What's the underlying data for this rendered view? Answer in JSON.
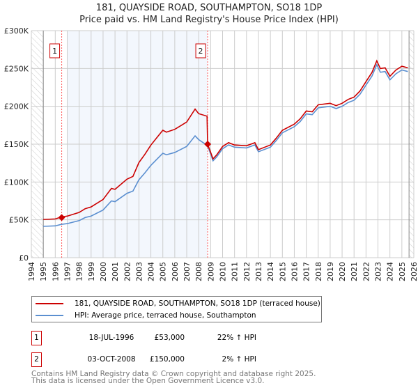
{
  "chart_data": {
    "type": "line",
    "title": "181, QUAYSIDE ROAD, SOUTHAMPTON, SO18 1DP",
    "subtitle": "Price paid vs. HM Land Registry's House Price Index (HPI)",
    "xlim": [
      1994,
      2026
    ],
    "ylim": [
      0,
      300000
    ],
    "x_ticks": [
      "1994",
      "1995",
      "1996",
      "1997",
      "1998",
      "1999",
      "2000",
      "2001",
      "2002",
      "2003",
      "2004",
      "2005",
      "2006",
      "2007",
      "2008",
      "2009",
      "2010",
      "2011",
      "2012",
      "2013",
      "2014",
      "2015",
      "2016",
      "2017",
      "2018",
      "2019",
      "2020",
      "2021",
      "2022",
      "2023",
      "2024",
      "2025",
      "2026"
    ],
    "y_ticks": [
      {
        "v": 0,
        "label": "£0"
      },
      {
        "v": 50000,
        "label": "£50K"
      },
      {
        "v": 100000,
        "label": "£100K"
      },
      {
        "v": 150000,
        "label": "£150K"
      },
      {
        "v": 200000,
        "label": "£200K"
      },
      {
        "v": 250000,
        "label": "£250K"
      },
      {
        "v": 300000,
        "label": "£300K"
      }
    ],
    "grid": true,
    "series": [
      {
        "name": "181, QUAYSIDE ROAD, SOUTHAMPTON, SO18 1DP (terraced house)",
        "color": "#cc0000",
        "x": [
          1995,
          1996,
          1996.5,
          1997,
          1998,
          1998.5,
          1999,
          2000,
          2000.7,
          2001,
          2002,
          2002.5,
          2003,
          2003.5,
          2004,
          2004.5,
          2005,
          2005.3,
          2006,
          2007,
          2007.7,
          2008,
          2008.7,
          2008.75,
          2009.2,
          2009.5,
          2010,
          2010.5,
          2011,
          2012,
          2012.7,
          2013,
          2014,
          2014.5,
          2015,
          2016,
          2016.5,
          2017,
          2017.5,
          2018,
          2019,
          2019.5,
          2020,
          2020.5,
          2021,
          2021.5,
          2022,
          2022.5,
          2022.9,
          2023.2,
          2023.6,
          2024,
          2024.5,
          2025,
          2025.5
        ],
        "values": [
          50500,
          51200,
          53700,
          54900,
          59800,
          64700,
          67100,
          76900,
          91500,
          90300,
          103700,
          107400,
          125700,
          136600,
          148800,
          158600,
          168400,
          165900,
          169600,
          179300,
          196400,
          190300,
          187000,
          150000,
          130600,
          135700,
          146900,
          152000,
          148900,
          147900,
          152000,
          142800,
          148900,
          158100,
          168300,
          176500,
          183600,
          193800,
          192800,
          202000,
          204000,
          200900,
          204000,
          209100,
          212200,
          220300,
          232600,
          244800,
          260100,
          249900,
          250900,
          239700,
          247900,
          253000,
          250900
        ]
      },
      {
        "name": "HPI: Average price, terraced house, Southampton",
        "color": "#5b8fd0",
        "x": [
          1995,
          1996,
          1996.5,
          1997,
          1998,
          1998.5,
          1999,
          2000,
          2000.7,
          2001,
          2002,
          2002.5,
          2003,
          2003.5,
          2004,
          2004.5,
          2005,
          2005.3,
          2006,
          2007,
          2007.7,
          2008,
          2008.75,
          2009.2,
          2009.5,
          2010,
          2010.5,
          2011,
          2012,
          2012.7,
          2013,
          2014,
          2014.5,
          2015,
          2016,
          2016.5,
          2017,
          2017.5,
          2018,
          2019,
          2019.5,
          2020,
          2020.5,
          2021,
          2021.5,
          2022,
          2022.5,
          2022.9,
          2023.2,
          2023.6,
          2024,
          2024.5,
          2025,
          2025.5
        ],
        "values": [
          41400,
          42000,
          44000,
          45000,
          49000,
          53000,
          55000,
          63000,
          75000,
          74000,
          85000,
          88000,
          103000,
          112000,
          122000,
          130000,
          138000,
          136000,
          139000,
          147000,
          161000,
          156000,
          148000,
          128000,
          133000,
          144000,
          149000,
          146000,
          145000,
          149000,
          140000,
          146000,
          155000,
          165000,
          173000,
          180000,
          190000,
          189000,
          198000,
          200000,
          197000,
          200000,
          205000,
          208000,
          216000,
          228000,
          240000,
          255000,
          245000,
          246000,
          235000,
          243000,
          248000,
          246000
        ]
      }
    ],
    "sales": [
      {
        "id": "1",
        "x": 1996.54,
        "price": 53000,
        "date": "18-JUL-1996",
        "price_label": "£53,000",
        "hpi": "22% ↑ HPI"
      },
      {
        "id": "2",
        "x": 2008.75,
        "price": 150000,
        "date": "03-OCT-2008",
        "price_label": "£150,000",
        "hpi": "2% ↑ HPI"
      }
    ],
    "shaded_range": [
      1997,
      2008.75
    ],
    "hatched_ranges": [
      [
        1994,
        1995
      ],
      [
        2025.6,
        2026
      ]
    ],
    "legend_placement": "below"
  },
  "footer": [
    "Contains HM Land Registry data © Crown copyright and database right 2025.",
    "This data is licensed under the Open Government Licence v3.0."
  ]
}
